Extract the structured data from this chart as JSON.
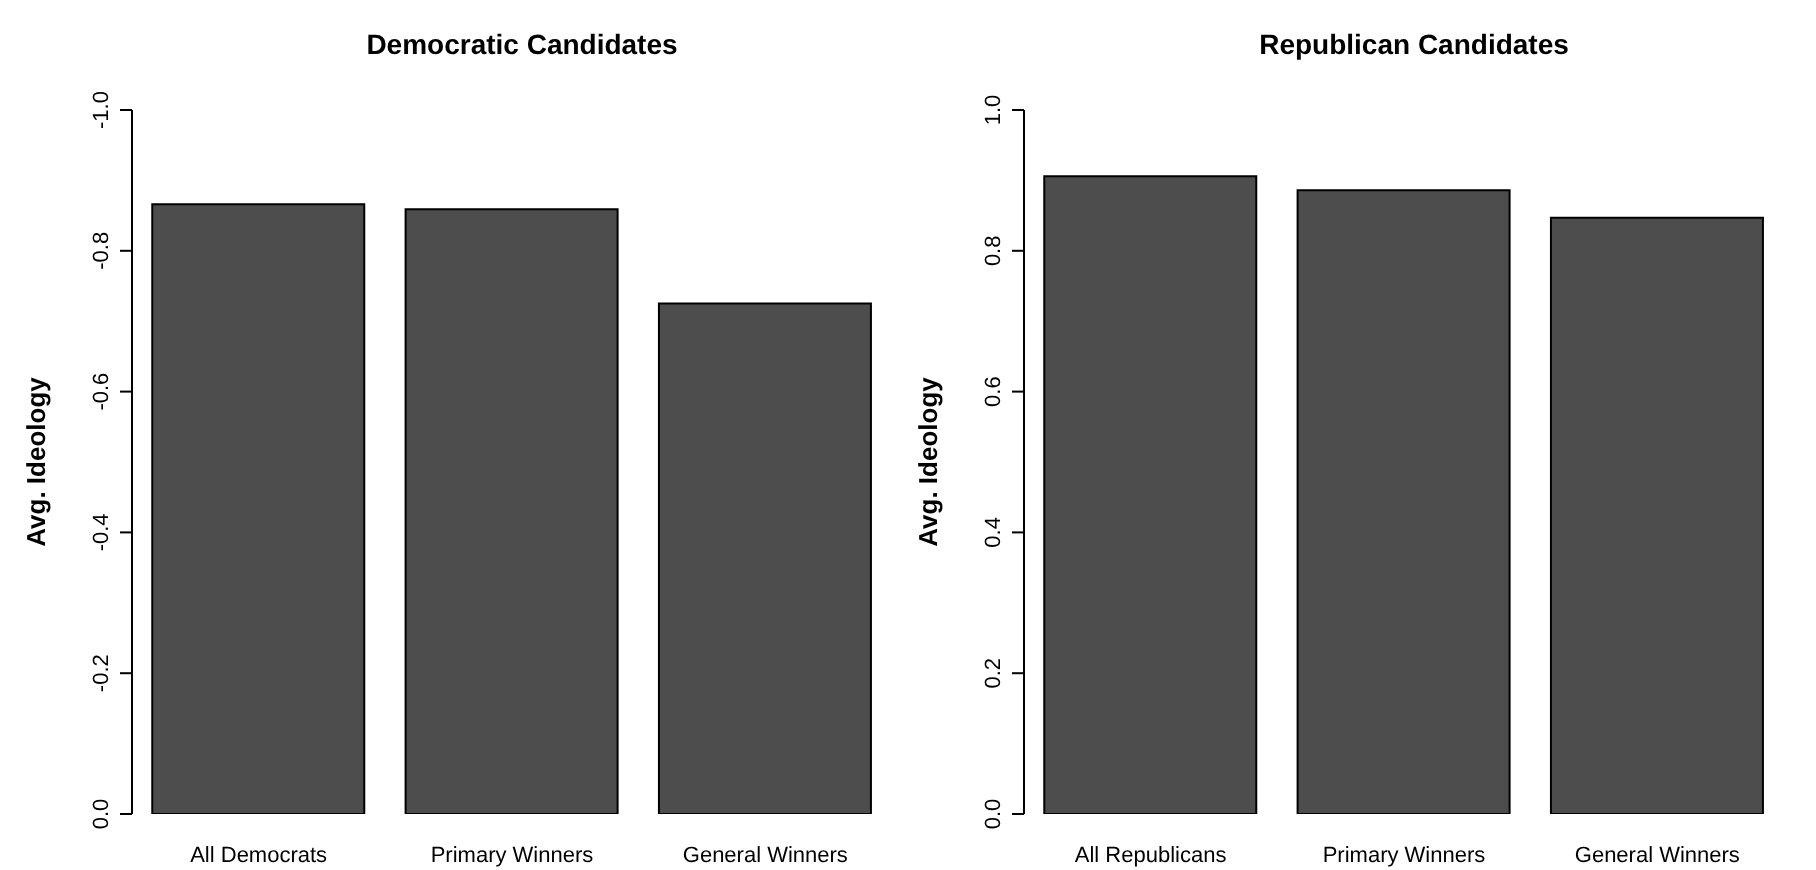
{
  "chart_data": [
    {
      "type": "bar",
      "title": "Democratic Candidates",
      "ylabel": "Avg. Ideology",
      "categories": [
        "All Democrats",
        "Primary Winners",
        "General Winners"
      ],
      "values": [
        -0.866,
        -0.859,
        -0.725
      ],
      "color": "#4d4d4d",
      "ylim": [
        0,
        -1.0
      ],
      "yticks": [
        {
          "value": 0,
          "label": "0.0"
        },
        {
          "value": -0.2,
          "label": "-0.2"
        },
        {
          "value": -0.4,
          "label": "-0.4"
        },
        {
          "value": -0.6,
          "label": "-0.6"
        },
        {
          "value": -0.8,
          "label": "-0.8"
        },
        {
          "value": -1.0,
          "label": "-1.0"
        }
      ],
      "grid": false,
      "legend": false
    },
    {
      "type": "bar",
      "title": "Republican Candidates",
      "ylabel": "Avg. Ideology",
      "categories": [
        "All Republicans",
        "Primary Winners",
        "General Winners"
      ],
      "values": [
        0.906,
        0.886,
        0.847
      ],
      "color": "#4d4d4d",
      "ylim": [
        0,
        1.0
      ],
      "yticks": [
        {
          "value": 0,
          "label": "0.0"
        },
        {
          "value": 0.2,
          "label": "0.2"
        },
        {
          "value": 0.4,
          "label": "0.4"
        },
        {
          "value": 0.6,
          "label": "0.6"
        },
        {
          "value": 0.8,
          "label": "0.8"
        },
        {
          "value": 1.0,
          "label": "1.0"
        }
      ],
      "grid": false,
      "legend": false
    }
  ]
}
